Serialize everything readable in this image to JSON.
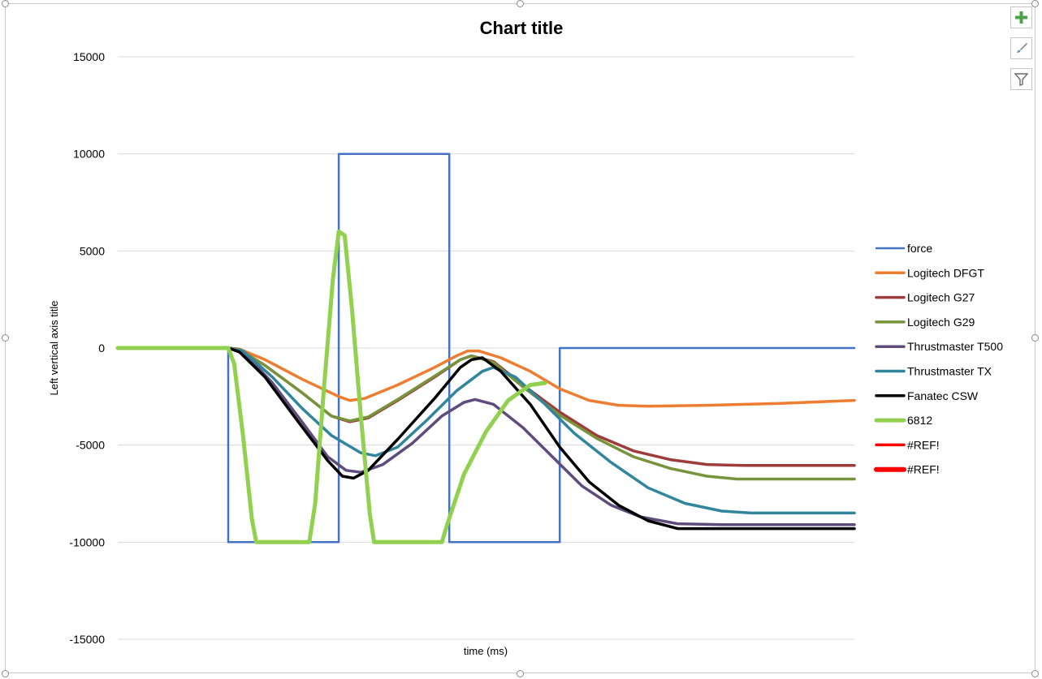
{
  "side_buttons": [
    {
      "name": "chart-elements-button",
      "icon": "plus-icon"
    },
    {
      "name": "chart-styles-button",
      "icon": "brush-icon"
    },
    {
      "name": "chart-filters-button",
      "icon": "funnel-icon"
    }
  ],
  "chart_data": {
    "type": "line",
    "title": "Chart title",
    "xlabel": "time (ms)",
    "ylabel": "Left vertical axis title",
    "ylim": [
      -15000,
      15000
    ],
    "yticks": [
      "15000",
      "10000",
      "5000",
      "0",
      "-5000",
      "-10000",
      "-15000"
    ],
    "xlim": [
      0,
      1000
    ],
    "grid": true,
    "legend_position": "right",
    "series": [
      {
        "name": "force",
        "color": "#4472C4",
        "width": 2.5,
        "points": [
          [
            0,
            0
          ],
          [
            150,
            0
          ],
          [
            150,
            -10000
          ],
          [
            300,
            -10000
          ],
          [
            300,
            10000
          ],
          [
            450,
            10000
          ],
          [
            450,
            -10000
          ],
          [
            600,
            -10000
          ],
          [
            600,
            0
          ],
          [
            1000,
            0
          ]
        ]
      },
      {
        "name": "Logitech DFGT",
        "color": "#ED7D31",
        "width": 3.5,
        "points": [
          [
            0,
            0
          ],
          [
            150,
            0
          ],
          [
            165,
            -50
          ],
          [
            200,
            -600
          ],
          [
            250,
            -1600
          ],
          [
            300,
            -2500
          ],
          [
            315,
            -2700
          ],
          [
            335,
            -2600
          ],
          [
            380,
            -1900
          ],
          [
            430,
            -1000
          ],
          [
            460,
            -400
          ],
          [
            475,
            -150
          ],
          [
            490,
            -150
          ],
          [
            520,
            -500
          ],
          [
            560,
            -1200
          ],
          [
            600,
            -2100
          ],
          [
            640,
            -2700
          ],
          [
            680,
            -2950
          ],
          [
            720,
            -3000
          ],
          [
            800,
            -2950
          ],
          [
            900,
            -2850
          ],
          [
            1000,
            -2700
          ]
        ]
      },
      {
        "name": "Logitech G27",
        "color": "#9E3B3B",
        "width": 3.5,
        "points": [
          [
            0,
            0
          ],
          [
            150,
            0
          ],
          [
            165,
            -80
          ],
          [
            200,
            -900
          ],
          [
            250,
            -2300
          ],
          [
            290,
            -3500
          ],
          [
            315,
            -3800
          ],
          [
            340,
            -3600
          ],
          [
            380,
            -2700
          ],
          [
            430,
            -1500
          ],
          [
            465,
            -600
          ],
          [
            480,
            -400
          ],
          [
            510,
            -700
          ],
          [
            550,
            -1900
          ],
          [
            600,
            -3300
          ],
          [
            650,
            -4500
          ],
          [
            700,
            -5300
          ],
          [
            750,
            -5750
          ],
          [
            800,
            -6000
          ],
          [
            850,
            -6050
          ],
          [
            1000,
            -6050
          ]
        ]
      },
      {
        "name": "Logitech G29",
        "color": "#77933C",
        "width": 3.5,
        "points": [
          [
            0,
            0
          ],
          [
            150,
            0
          ],
          [
            165,
            -80
          ],
          [
            200,
            -900
          ],
          [
            250,
            -2300
          ],
          [
            290,
            -3500
          ],
          [
            315,
            -3750
          ],
          [
            340,
            -3550
          ],
          [
            380,
            -2650
          ],
          [
            430,
            -1450
          ],
          [
            465,
            -600
          ],
          [
            480,
            -400
          ],
          [
            510,
            -750
          ],
          [
            550,
            -2000
          ],
          [
            600,
            -3450
          ],
          [
            650,
            -4650
          ],
          [
            700,
            -5600
          ],
          [
            750,
            -6200
          ],
          [
            800,
            -6600
          ],
          [
            840,
            -6750
          ],
          [
            1000,
            -6750
          ]
        ]
      },
      {
        "name": "Thrustmaster T500",
        "color": "#5F4C7C",
        "width": 3.5,
        "points": [
          [
            0,
            0
          ],
          [
            150,
            0
          ],
          [
            170,
            -200
          ],
          [
            210,
            -1800
          ],
          [
            250,
            -3800
          ],
          [
            285,
            -5600
          ],
          [
            310,
            -6300
          ],
          [
            330,
            -6400
          ],
          [
            360,
            -6000
          ],
          [
            400,
            -4900
          ],
          [
            440,
            -3500
          ],
          [
            470,
            -2800
          ],
          [
            485,
            -2650
          ],
          [
            510,
            -2900
          ],
          [
            550,
            -4100
          ],
          [
            590,
            -5600
          ],
          [
            630,
            -7100
          ],
          [
            670,
            -8100
          ],
          [
            710,
            -8700
          ],
          [
            760,
            -9050
          ],
          [
            820,
            -9100
          ],
          [
            1000,
            -9100
          ]
        ]
      },
      {
        "name": "Thrustmaster TX",
        "color": "#31859C",
        "width": 3.5,
        "points": [
          [
            0,
            0
          ],
          [
            150,
            0
          ],
          [
            170,
            -150
          ],
          [
            210,
            -1500
          ],
          [
            250,
            -3100
          ],
          [
            290,
            -4500
          ],
          [
            330,
            -5400
          ],
          [
            350,
            -5550
          ],
          [
            380,
            -5100
          ],
          [
            420,
            -3700
          ],
          [
            460,
            -2200
          ],
          [
            495,
            -1200
          ],
          [
            510,
            -1000
          ],
          [
            540,
            -1500
          ],
          [
            580,
            -2900
          ],
          [
            620,
            -4400
          ],
          [
            670,
            -5900
          ],
          [
            720,
            -7200
          ],
          [
            770,
            -8000
          ],
          [
            820,
            -8400
          ],
          [
            860,
            -8500
          ],
          [
            1000,
            -8500
          ]
        ]
      },
      {
        "name": "Fanatec CSW",
        "color": "#000000",
        "width": 3.5,
        "points": [
          [
            0,
            0
          ],
          [
            150,
            0
          ],
          [
            165,
            -200
          ],
          [
            200,
            -1500
          ],
          [
            245,
            -3800
          ],
          [
            285,
            -5800
          ],
          [
            305,
            -6600
          ],
          [
            320,
            -6700
          ],
          [
            340,
            -6300
          ],
          [
            380,
            -4700
          ],
          [
            430,
            -2600
          ],
          [
            465,
            -1000
          ],
          [
            480,
            -600
          ],
          [
            495,
            -500
          ],
          [
            520,
            -1200
          ],
          [
            560,
            -2900
          ],
          [
            600,
            -5100
          ],
          [
            640,
            -6900
          ],
          [
            680,
            -8100
          ],
          [
            720,
            -8900
          ],
          [
            760,
            -9300
          ],
          [
            1000,
            -9300
          ]
        ]
      },
      {
        "name": "6812",
        "color": "#92D050",
        "width": 5,
        "points": [
          [
            0,
            0
          ],
          [
            150,
            0
          ],
          [
            158,
            -800
          ],
          [
            170,
            -4500
          ],
          [
            182,
            -8800
          ],
          [
            188,
            -10000
          ],
          [
            260,
            -10000
          ],
          [
            268,
            -8000
          ],
          [
            280,
            -2000
          ],
          [
            292,
            3500
          ],
          [
            300,
            6000
          ],
          [
            308,
            5800
          ],
          [
            318,
            2000
          ],
          [
            330,
            -3500
          ],
          [
            342,
            -8500
          ],
          [
            348,
            -10000
          ],
          [
            440,
            -10000
          ],
          [
            448,
            -9000
          ],
          [
            470,
            -6500
          ],
          [
            500,
            -4300
          ],
          [
            530,
            -2700
          ],
          [
            560,
            -1900
          ],
          [
            580,
            -1800
          ],
          [
            575,
            -1800
          ]
        ]
      },
      {
        "name": "#REF!",
        "color": "#FF0000",
        "width": 3.5,
        "points": []
      },
      {
        "name": "#REF!",
        "color": "#FF0000",
        "width": 6,
        "points": []
      }
    ]
  }
}
